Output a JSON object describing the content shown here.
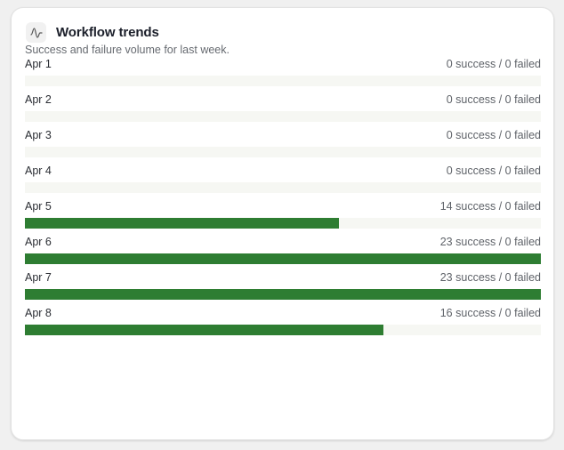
{
  "card": {
    "icon": "waveform-icon",
    "title": "Workflow trends",
    "subtitle": "Success and failure volume for last week."
  },
  "colors": {
    "success": "#2e7d32",
    "track": "#f6f7f3"
  },
  "rows": [
    {
      "label": "Apr 1",
      "value_text": "0 success / 0 failed",
      "success": 0,
      "failed": 0
    },
    {
      "label": "Apr 2",
      "value_text": "0 success / 0 failed",
      "success": 0,
      "failed": 0
    },
    {
      "label": "Apr 3",
      "value_text": "0 success / 0 failed",
      "success": 0,
      "failed": 0
    },
    {
      "label": "Apr 4",
      "value_text": "0 success / 0 failed",
      "success": 0,
      "failed": 0
    },
    {
      "label": "Apr 5",
      "value_text": "14 success / 0 failed",
      "success": 14,
      "failed": 0
    },
    {
      "label": "Apr 6",
      "value_text": "23 success / 0 failed",
      "success": 23,
      "failed": 0
    },
    {
      "label": "Apr 7",
      "value_text": "23 success / 0 failed",
      "success": 23,
      "failed": 0
    },
    {
      "label": "Apr 8",
      "value_text": "16 success / 0 failed",
      "success": 16,
      "failed": 0
    }
  ],
  "chart_data": {
    "type": "bar",
    "orientation": "horizontal",
    "title": "Workflow trends",
    "subtitle": "Success and failure volume for last week.",
    "categories": [
      "Apr 1",
      "Apr 2",
      "Apr 3",
      "Apr 4",
      "Apr 5",
      "Apr 6",
      "Apr 7",
      "Apr 8"
    ],
    "series": [
      {
        "name": "success",
        "color": "#2e7d32",
        "values": [
          0,
          0,
          0,
          0,
          14,
          23,
          23,
          16
        ]
      },
      {
        "name": "failed",
        "values": [
          0,
          0,
          0,
          0,
          0,
          0,
          0,
          0
        ]
      }
    ],
    "xlim": [
      0,
      23
    ],
    "grid": false,
    "legend": "none"
  }
}
